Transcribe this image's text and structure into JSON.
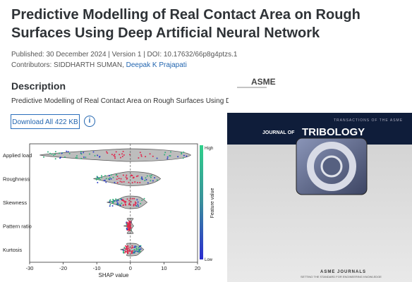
{
  "header": {
    "title": "Predictive Modelling of Real Contact Area on Rough Surfaces Using Deep Artificial Neural Network",
    "meta": "Published: 30 December 2024 | Version 1 | DOI: 10.17632/66p8g4ptzs.1",
    "contributors_label": "Contributors:",
    "contributors": [
      "SIDDHARTH SUMAN,",
      "Deepak K Prajapati"
    ]
  },
  "description": {
    "heading": "Description",
    "text": "Predictive Modelling of Real Contact Area on Rough Surfaces Using Deep Artif",
    "download_button": "Download All 422 KB"
  },
  "figure": {
    "features": [
      "Applied load",
      "Roughness",
      "Skewness",
      "Pattern ratio",
      "Kurtosis"
    ],
    "xlim": [
      -30,
      20
    ],
    "xticks": [
      -30,
      -20,
      -10,
      0,
      10,
      20
    ],
    "xlabel": "SHAP value",
    "colorbar_high": "High",
    "colorbar_low": "Low",
    "colorbar_label": "Feature value"
  },
  "cover": {
    "publisher_logo": "ASME",
    "series": "TRANSACTIONS OF THE ASME",
    "journal_of": "JOURNAL OF",
    "journal": "TRIBOLOGY",
    "footer": "ASME JOURNALS",
    "tagline": "SETTING THE STANDARD FOR ENGINEERING KNOWLEDGE"
  }
}
